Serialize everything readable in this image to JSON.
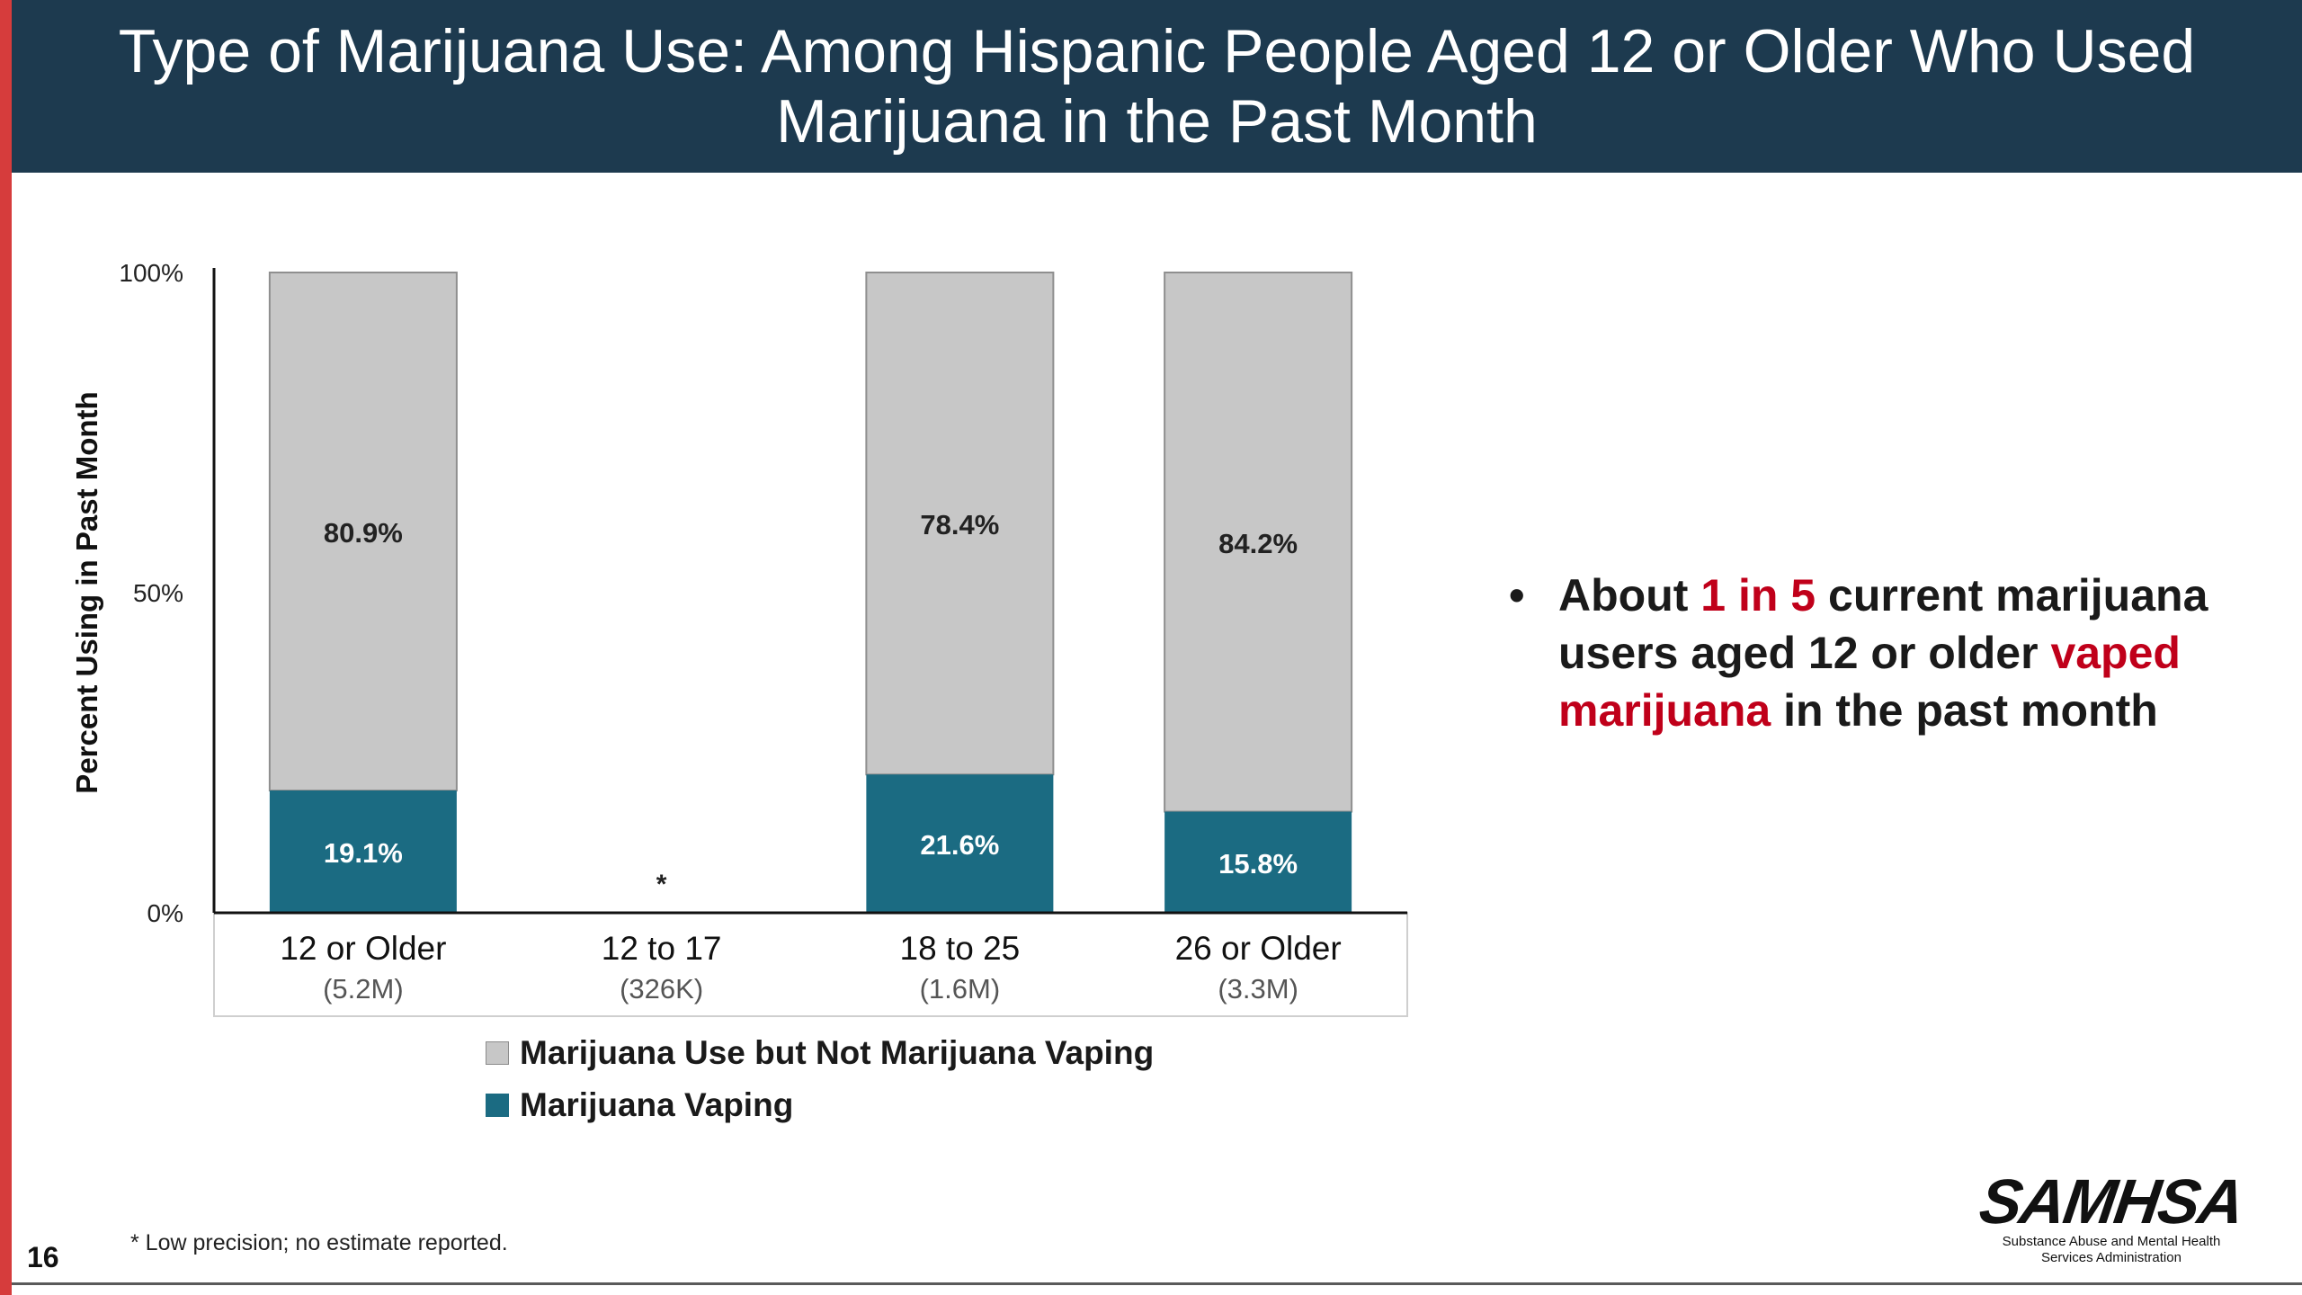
{
  "slide": {
    "title": "Type of Marijuana Use: Among Hispanic People Aged 12 or Older Who Used Marijuana in the Past Month",
    "page_number": "16",
    "footnote": "* Low precision; no estimate reported."
  },
  "bullet": {
    "part1": "About ",
    "highlight1": "1 in 5",
    "part2": " current marijuana users aged 12 or older ",
    "highlight2": "vaped marijuana",
    "part3": " in the past month"
  },
  "logo": {
    "name": "SAMHSA",
    "subtitle_line1": "Substance Abuse and Mental Health",
    "subtitle_line2": "Services Administration"
  },
  "colors": {
    "header_bg": "#1d3a4f",
    "accent_red": "#c0001a",
    "bar_gray": "#c7c7c7",
    "bar_teal": "#1b6b82"
  },
  "chart_data": {
    "type": "bar",
    "stacked": true,
    "ylabel": "Percent Using in Past Month",
    "ylim": [
      0,
      100
    ],
    "yticks": [
      "0%",
      "50%",
      "100%"
    ],
    "categories": [
      "12 or Older",
      "12 to 17",
      "18 to 25",
      "26 or Older"
    ],
    "category_sublabels": [
      "(5.2M)",
      "(326K)",
      "(1.6M)",
      "(3.3M)"
    ],
    "series": [
      {
        "name": "Marijuana Vaping",
        "color": "#1b6b82",
        "values": [
          19.1,
          null,
          21.6,
          15.8
        ],
        "labels": [
          "19.1%",
          "*",
          "21.6%",
          "15.8%"
        ]
      },
      {
        "name": "Marijuana Use but Not Marijuana Vaping",
        "color": "#c7c7c7",
        "values": [
          80.9,
          null,
          78.4,
          84.2
        ],
        "labels": [
          "80.9%",
          "",
          "78.4%",
          "84.2%"
        ]
      }
    ],
    "legend_order": [
      "Marijuana Use but Not Marijuana Vaping",
      "Marijuana Vaping"
    ],
    "legend_position": "bottom"
  }
}
